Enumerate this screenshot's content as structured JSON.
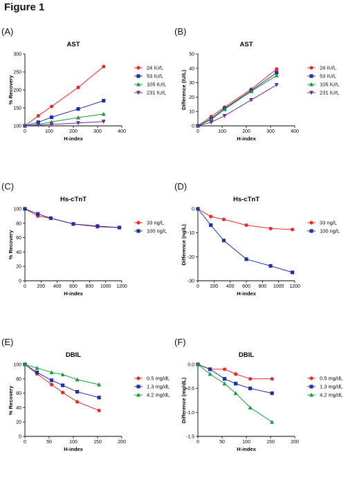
{
  "figure_title": "Figure 1",
  "chart_data": [
    {
      "panel": "(A)",
      "type": "line",
      "title": "AST",
      "xlabel": "H-index",
      "ylabel": "% Recovery",
      "xlim": [
        0,
        400
      ],
      "ylim": [
        100,
        300
      ],
      "xticks": [
        0,
        100,
        200,
        300,
        400
      ],
      "yticks": [
        100,
        150,
        200,
        250,
        300
      ],
      "legend": "right",
      "series": [
        {
          "name": "24 IU/L",
          "color": "#e8292b",
          "marker": "circle",
          "x": [
            0,
            55,
            110,
            220,
            325
          ],
          "y": [
            100,
            128,
            154,
            207,
            265
          ]
        },
        {
          "name": "53 IU/L",
          "color": "#1f2fa8",
          "marker": "square",
          "x": [
            0,
            55,
            110,
            220,
            325
          ],
          "y": [
            100,
            110,
            124,
            147,
            170
          ]
        },
        {
          "name": "105 IU/L",
          "color": "#1a9a3a",
          "marker": "triangle",
          "x": [
            0,
            55,
            110,
            220,
            325
          ],
          "y": [
            100,
            104,
            111,
            123,
            133
          ]
        },
        {
          "name": "231 IU/L",
          "color": "#6a2aa0",
          "marker": "triangle-down",
          "x": [
            0,
            55,
            110,
            220,
            325
          ],
          "y": [
            100,
            102,
            104,
            108,
            112
          ]
        }
      ]
    },
    {
      "panel": "(B)",
      "type": "line",
      "title": "AST",
      "xlabel": "H-index",
      "ylabel": "Difference (IU/L)",
      "xlim": [
        0,
        400
      ],
      "ylim": [
        0,
        50
      ],
      "xticks": [
        0,
        100,
        200,
        300,
        400
      ],
      "yticks": [
        0,
        10,
        20,
        30,
        40,
        50
      ],
      "legend": "right",
      "series": [
        {
          "name": "24 IU/L",
          "color": "#e8292b",
          "marker": "circle",
          "x": [
            0,
            55,
            110,
            220,
            325
          ],
          "y": [
            0,
            6.5,
            13,
            25.5,
            39.5
          ]
        },
        {
          "name": "53 IU/L",
          "color": "#1f2fa8",
          "marker": "square",
          "x": [
            0,
            55,
            110,
            220,
            325
          ],
          "y": [
            0,
            5,
            12,
            24.5,
            37
          ]
        },
        {
          "name": "105 IU/L",
          "color": "#1a9a3a",
          "marker": "triangle",
          "x": [
            0,
            55,
            110,
            220,
            325
          ],
          "y": [
            0,
            4.5,
            11.5,
            24,
            35
          ]
        },
        {
          "name": "231 IU/L",
          "color": "#6a2aa0",
          "marker": "triangle-down",
          "x": [
            0,
            55,
            110,
            220,
            325
          ],
          "y": [
            0,
            2.5,
            7,
            18,
            28.5
          ]
        }
      ]
    },
    {
      "panel": "(C)",
      "type": "line",
      "title": "Hs-cTnT",
      "xlabel": "H-index",
      "ylabel": "% Recovery",
      "xlim": [
        0,
        1200
      ],
      "ylim": [
        0,
        100
      ],
      "xticks": [
        0,
        200,
        400,
        600,
        800,
        1000,
        1200
      ],
      "yticks": [
        0,
        20,
        40,
        60,
        80,
        100
      ],
      "legend": "right",
      "series": [
        {
          "name": "33 ng/L",
          "color": "#e8292b",
          "marker": "circle",
          "x": [
            0,
            160,
            320,
            600,
            900,
            1170
          ],
          "y": [
            100,
            90,
            87,
            79,
            75,
            74
          ]
        },
        {
          "name": "100 ng/L",
          "color": "#1f2fa8",
          "marker": "square",
          "x": [
            0,
            160,
            320,
            600,
            900,
            1170
          ],
          "y": [
            100,
            93,
            87,
            79,
            76,
            74
          ]
        }
      ]
    },
    {
      "panel": "(D)",
      "type": "line",
      "title": "Hs-cTnT",
      "xlabel": "H-index",
      "ylabel": "Difference (ng/L)",
      "xlim": [
        0,
        1200
      ],
      "ylim": [
        -30,
        0
      ],
      "xticks": [
        0,
        200,
        400,
        600,
        800,
        1000,
        1200
      ],
      "yticks": [
        0,
        -10,
        -20,
        -30
      ],
      "legend": "right",
      "series": [
        {
          "name": "33 ng/L",
          "color": "#e8292b",
          "marker": "circle",
          "x": [
            0,
            160,
            320,
            600,
            900,
            1170
          ],
          "y": [
            0,
            -3.2,
            -4.4,
            -6.8,
            -8.2,
            -8.6
          ]
        },
        {
          "name": "100 ng/L",
          "color": "#1f2fa8",
          "marker": "square",
          "x": [
            0,
            160,
            320,
            600,
            900,
            1170
          ],
          "y": [
            0,
            -6.8,
            -13.2,
            -21,
            -23.8,
            -26.5
          ]
        }
      ]
    },
    {
      "panel": "(E)",
      "type": "line",
      "title": "DBIL",
      "xlabel": "H-index",
      "ylabel": "% Recovery",
      "xlim": [
        0,
        200
      ],
      "ylim": [
        0,
        100
      ],
      "xticks": [
        0,
        50,
        100,
        150,
        200
      ],
      "yticks": [
        0,
        20,
        40,
        60,
        80,
        100
      ],
      "legend": "right",
      "series": [
        {
          "name": "0.5 mg/dL",
          "color": "#e8292b",
          "marker": "circle",
          "x": [
            0,
            25,
            55,
            78,
            108,
            153
          ],
          "y": [
            100,
            87,
            72,
            61,
            48,
            36
          ]
        },
        {
          "name": "1.3 mg/dL",
          "color": "#1f2fa8",
          "marker": "square",
          "x": [
            0,
            25,
            55,
            78,
            108,
            153
          ],
          "y": [
            100,
            89,
            78,
            71,
            62,
            54
          ]
        },
        {
          "name": "4.2 mg/dL",
          "color": "#1a9a3a",
          "marker": "triangle",
          "x": [
            0,
            25,
            55,
            78,
            108,
            153
          ],
          "y": [
            100,
            95,
            89,
            86,
            79,
            72
          ]
        }
      ]
    },
    {
      "panel": "(F)",
      "type": "line",
      "title": "DBIL",
      "xlabel": "H-index",
      "ylabel": "Difference (mg/dL)",
      "xlim": [
        0,
        200
      ],
      "ylim": [
        -1.5,
        0
      ],
      "xticks": [
        0,
        50,
        100,
        150,
        200
      ],
      "yticks": [
        0.0,
        -0.5,
        -1.0,
        -1.5
      ],
      "ytick_labels": [
        "0.0",
        "-0.5",
        "-1.0",
        "-1.5"
      ],
      "legend": "right",
      "series": [
        {
          "name": "0.5 mg/dL",
          "color": "#e8292b",
          "marker": "circle",
          "x": [
            0,
            25,
            55,
            78,
            108,
            153
          ],
          "y": [
            0,
            -0.1,
            -0.1,
            -0.2,
            -0.3,
            -0.3
          ]
        },
        {
          "name": "1.3 mg/dL",
          "color": "#1f2fa8",
          "marker": "square",
          "x": [
            0,
            25,
            55,
            78,
            108,
            153
          ],
          "y": [
            0,
            -0.1,
            -0.3,
            -0.4,
            -0.5,
            -0.6
          ]
        },
        {
          "name": "4.2 mg/dL",
          "color": "#1a9a3a",
          "marker": "triangle",
          "x": [
            0,
            25,
            55,
            78,
            108,
            153
          ],
          "y": [
            0,
            -0.2,
            -0.4,
            -0.6,
            -0.9,
            -1.2
          ]
        }
      ]
    }
  ]
}
